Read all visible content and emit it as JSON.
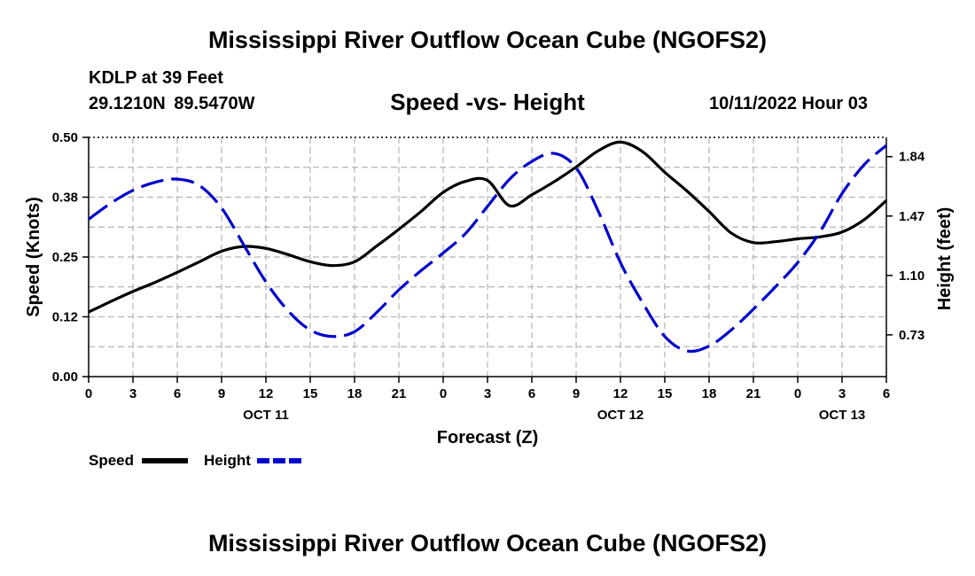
{
  "page": {
    "title": "Mississippi River Outflow Ocean Cube (NGOFS2)",
    "footer_title": "Mississippi River Outflow Ocean Cube (NGOFS2)",
    "station": "KDLP at 39 Feet",
    "coordinates": "29.1210N 89.5470W",
    "run_time": "10/11/2022 Hour 03"
  },
  "chart_data": {
    "type": "line",
    "title": "Speed -vs- Height",
    "xlabel": "Forecast (Z)",
    "ylabel": "Speed (Knots)",
    "y2label": "Height (feet)",
    "xlim": [
      0,
      54
    ],
    "ylim": [
      0,
      0.5
    ],
    "y2lim": [
      0.47,
      1.96
    ],
    "grid": true,
    "legend_position": "bottom-left",
    "x_ticks": [
      0,
      3,
      6,
      9,
      12,
      15,
      18,
      21,
      24,
      27,
      30,
      33,
      36,
      39,
      42,
      45,
      48,
      51,
      54
    ],
    "x_tick_labels": [
      "0",
      "3",
      "6",
      "9",
      "12",
      "15",
      "18",
      "21",
      "0",
      "3",
      "6",
      "9",
      "12",
      "15",
      "18",
      "21",
      "0",
      "3",
      "6"
    ],
    "date_labels": [
      {
        "x": 12,
        "label": "OCT 11"
      },
      {
        "x": 36,
        "label": "OCT 12"
      },
      {
        "x": 51,
        "label": "OCT 13"
      }
    ],
    "y_ticks": [
      0.0,
      0.125,
      0.25,
      0.375,
      0.5
    ],
    "y_tick_labels": [
      "0.00",
      "0.12",
      "0.25",
      "0.38",
      "0.50"
    ],
    "y2_ticks": [
      0.73,
      1.1,
      1.47,
      1.84
    ],
    "y2_tick_labels": [
      "0.73",
      "1.10",
      "1.47",
      "1.84"
    ],
    "series": [
      {
        "name": "Speed",
        "axis": "left",
        "color": "#000000",
        "style": "solid",
        "x": [
          0,
          1.5,
          3,
          4.5,
          6,
          7.5,
          9,
          10.5,
          12,
          13.5,
          15,
          16.5,
          18,
          19.5,
          21,
          22.5,
          24,
          25.5,
          27,
          28.5,
          30,
          31.5,
          33,
          34.5,
          36,
          37.5,
          39,
          40.5,
          42,
          43.5,
          45,
          46.5,
          48,
          49.5,
          51,
          52.5,
          54
        ],
        "values": [
          0.135,
          0.157,
          0.178,
          0.197,
          0.218,
          0.24,
          0.262,
          0.272,
          0.268,
          0.255,
          0.24,
          0.232,
          0.24,
          0.273,
          0.308,
          0.345,
          0.385,
          0.408,
          0.41,
          0.357,
          0.38,
          0.407,
          0.438,
          0.472,
          0.49,
          0.47,
          0.427,
          0.388,
          0.345,
          0.3,
          0.28,
          0.282,
          0.288,
          0.292,
          0.302,
          0.328,
          0.368
        ]
      },
      {
        "name": "Height",
        "axis": "right",
        "color": "#0000cc",
        "style": "dashed",
        "x": [
          0,
          1.5,
          3,
          4.5,
          6,
          7.5,
          9,
          10.5,
          12,
          13.5,
          15,
          16.5,
          18,
          19.5,
          21,
          22.5,
          24,
          25.5,
          27,
          28.5,
          30,
          31.5,
          33,
          34.5,
          36,
          37.5,
          39,
          40.5,
          42,
          43.5,
          45,
          46.5,
          48,
          49.5,
          51,
          52.5,
          54
        ],
        "values": [
          1.45,
          1.55,
          1.63,
          1.68,
          1.7,
          1.66,
          1.52,
          1.29,
          1.06,
          0.88,
          0.76,
          0.72,
          0.75,
          0.87,
          1.01,
          1.13,
          1.24,
          1.36,
          1.53,
          1.7,
          1.81,
          1.86,
          1.77,
          1.5,
          1.18,
          0.93,
          0.72,
          0.63,
          0.66,
          0.76,
          0.89,
          1.03,
          1.18,
          1.37,
          1.61,
          1.79,
          1.91
        ]
      }
    ]
  }
}
